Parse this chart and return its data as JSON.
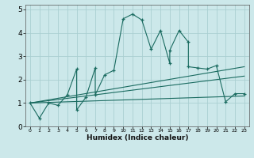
{
  "xlabel": "Humidex (Indice chaleur)",
  "bg_color": "#cce8ea",
  "grid_color": "#aacfd2",
  "line_color": "#1a6b60",
  "xlim": [
    -0.5,
    23.5
  ],
  "ylim": [
    0,
    5.2
  ],
  "xticks": [
    0,
    1,
    2,
    3,
    4,
    5,
    6,
    7,
    8,
    9,
    10,
    11,
    12,
    13,
    14,
    15,
    16,
    17,
    18,
    19,
    20,
    21,
    22,
    23
  ],
  "yticks": [
    0,
    1,
    2,
    3,
    4,
    5
  ],
  "main_x": [
    0,
    1,
    2,
    3,
    4,
    5,
    5,
    6,
    7,
    7,
    8,
    9,
    10,
    11,
    12,
    13,
    14,
    15,
    15,
    16,
    17,
    17,
    18,
    19,
    20,
    21,
    22,
    23
  ],
  "main_y": [
    1.0,
    0.35,
    1.0,
    0.9,
    1.35,
    2.45,
    0.7,
    1.25,
    2.5,
    1.35,
    2.2,
    2.4,
    4.6,
    4.8,
    4.55,
    3.3,
    4.1,
    2.7,
    3.25,
    4.1,
    3.6,
    2.55,
    2.5,
    2.45,
    2.6,
    1.05,
    1.4,
    1.4
  ],
  "trend1_x": [
    0,
    23
  ],
  "trend1_y": [
    1.0,
    2.55
  ],
  "trend2_x": [
    0,
    23
  ],
  "trend2_y": [
    1.0,
    2.15
  ],
  "trend3_x": [
    0,
    23
  ],
  "trend3_y": [
    1.0,
    1.3
  ]
}
